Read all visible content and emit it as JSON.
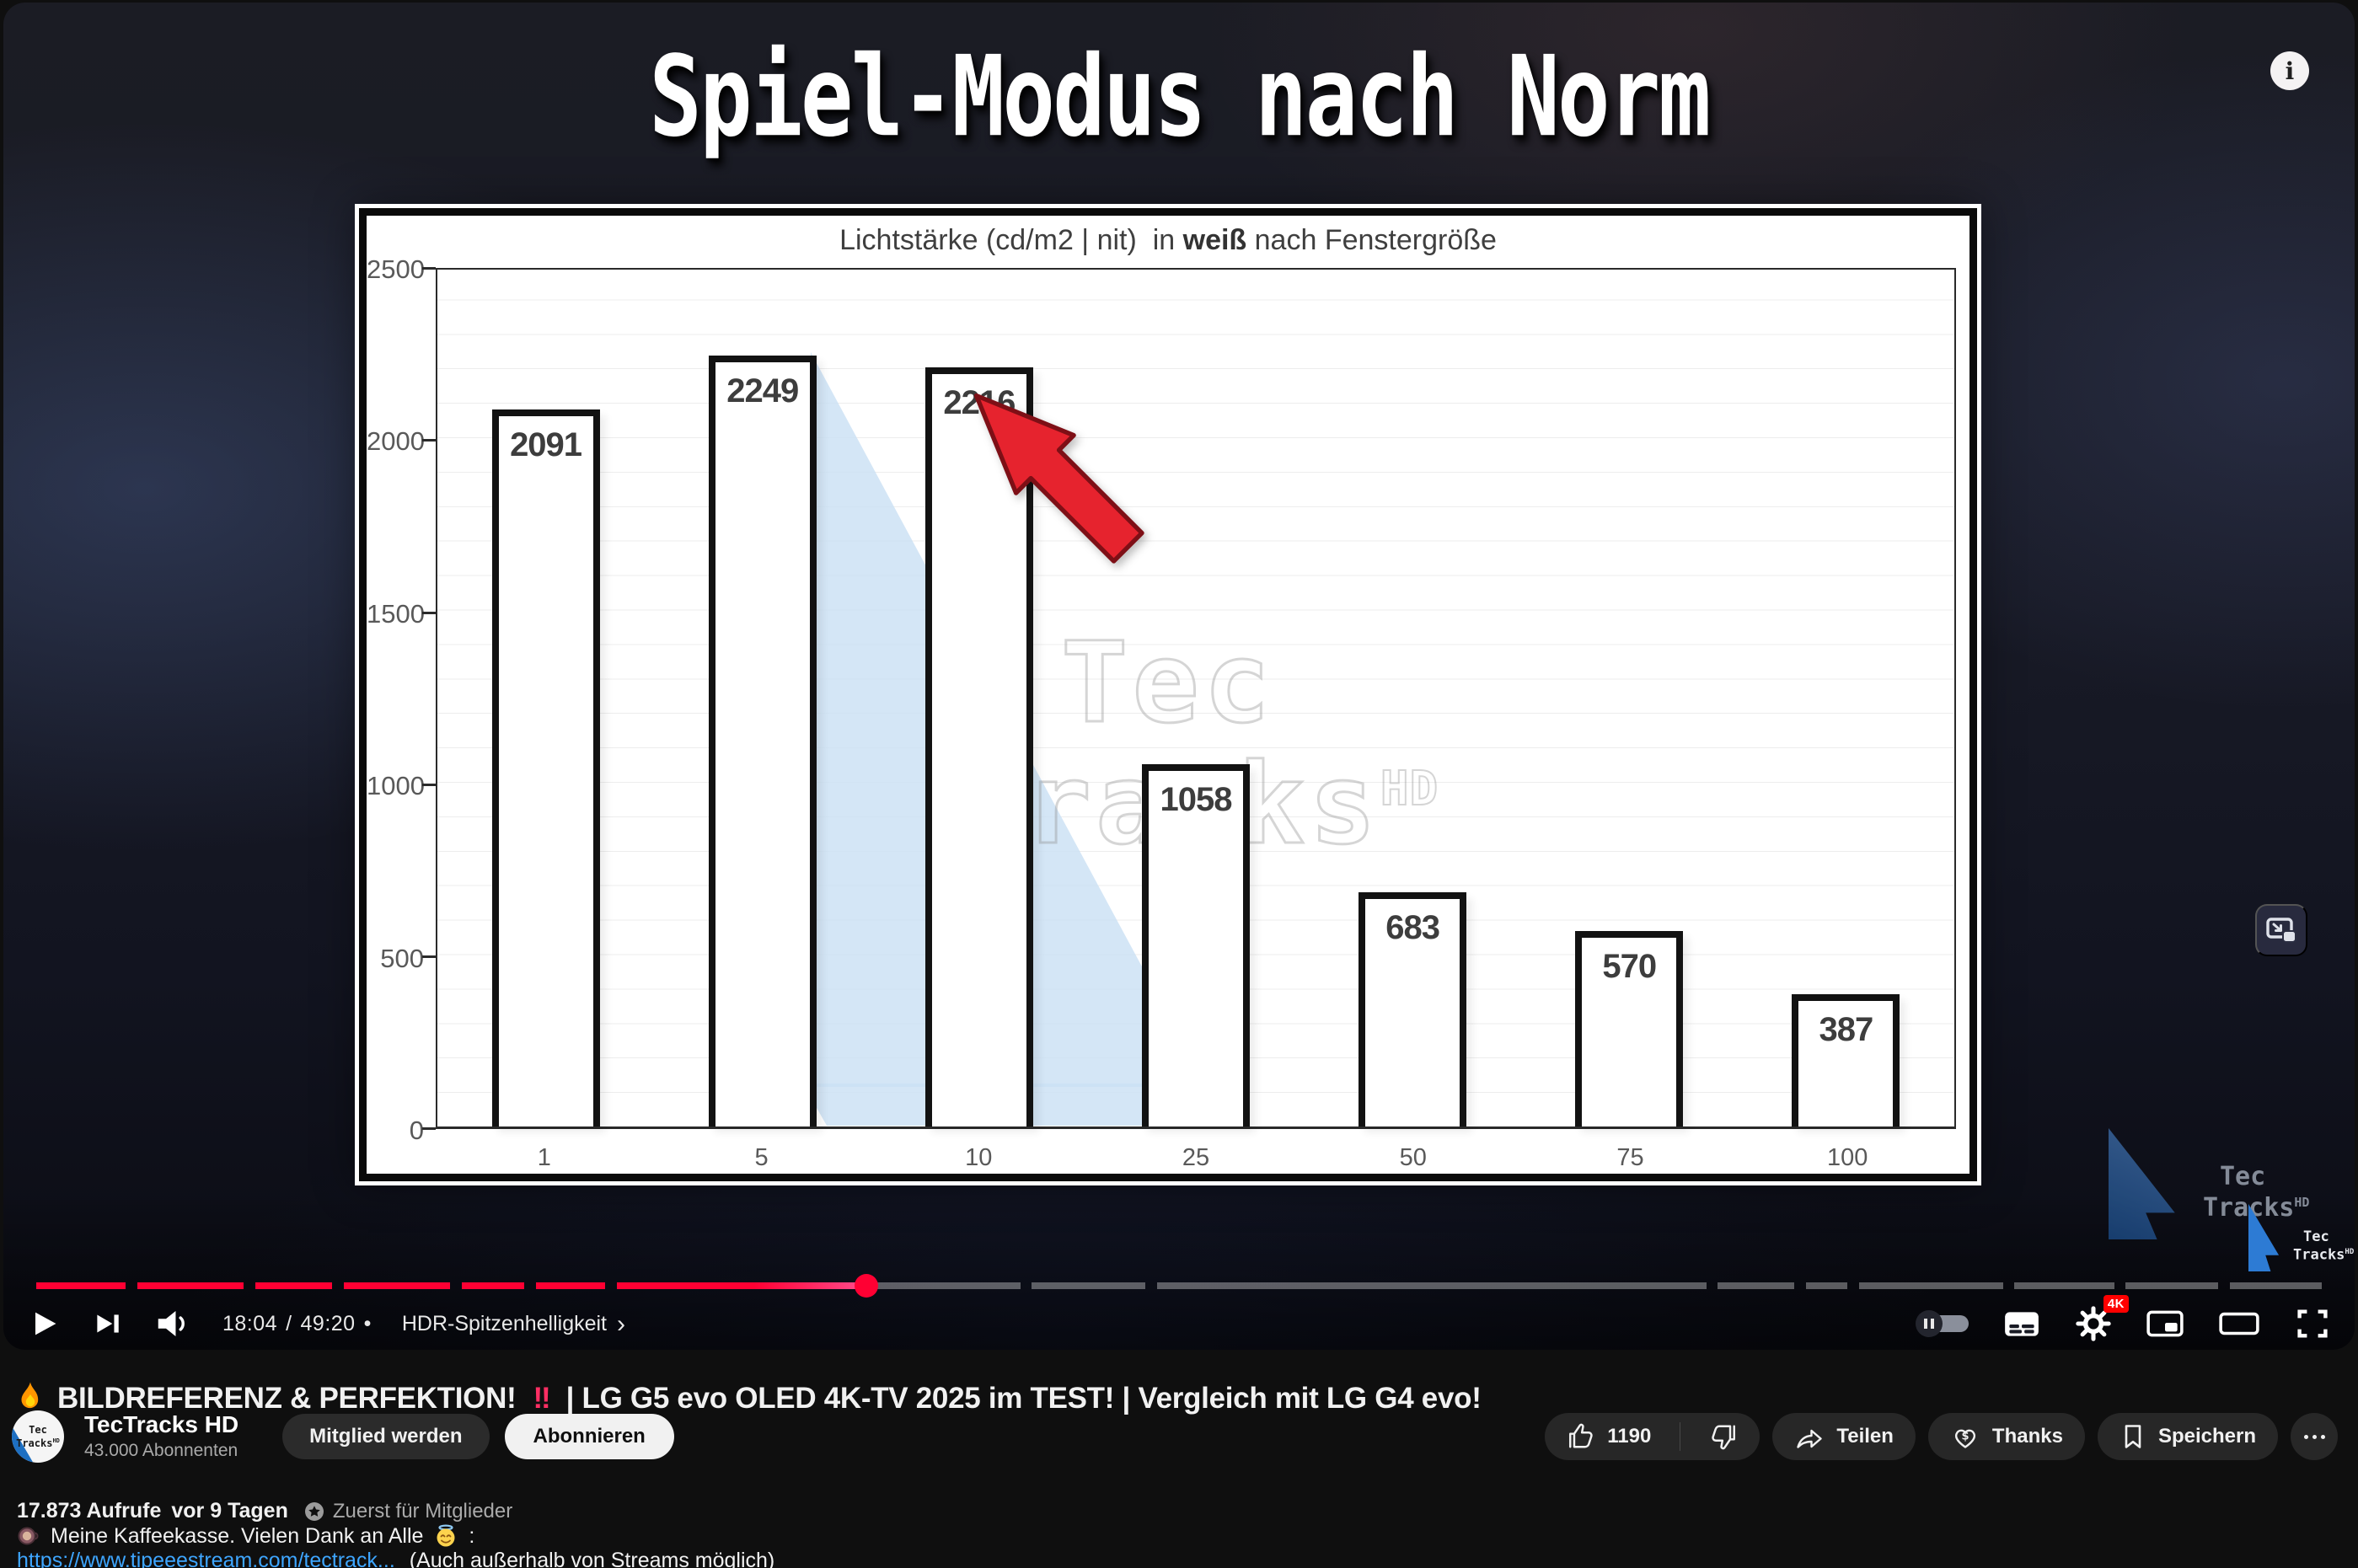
{
  "colors": {
    "accent_red": "#ff0033",
    "link_blue": "#3ea6ff",
    "bang_pink": "#ff2e63",
    "arrow_red": "#e6232e",
    "logo_blue": "#2d7bd4",
    "sail_blue": "#cfe0f4",
    "settings_badge_red": "#ff0000",
    "page_bg": "#0f0f0f"
  },
  "overlay": {
    "headline": "Spiel-Modus nach Norm",
    "info_label": "i"
  },
  "chart_data": {
    "type": "bar",
    "title_prefix": "Lichtstärke (cd/m2 | nit)  in ",
    "title_bold": "weiß",
    "title_suffix": " nach Fenstergröße",
    "categories": [
      "1",
      "5",
      "10",
      "25",
      "50",
      "75",
      "100"
    ],
    "values": [
      2091,
      2249,
      2216,
      1058,
      683,
      570,
      387
    ],
    "ylim": [
      0,
      2500
    ],
    "yticks": [
      "2500",
      "2000",
      "1500",
      "1000",
      "500",
      "0"
    ],
    "grid": true,
    "legend": false,
    "annotation": "red arrow pointing at the 2216 bar (10% window)",
    "watermark": {
      "line1": "Tec",
      "line2": "Tracks",
      "sup": "HD"
    }
  },
  "player": {
    "time_current": "18:04",
    "time_separator": "/",
    "time_duration": "49:20",
    "bullet": "•",
    "chapter_title": "HDR-Spitzenhelligkeit",
    "chapter_chevron": "›",
    "settings_badge": "4K",
    "progress": {
      "played_percent": 36.5,
      "segments": [
        [
          0.7,
          4.55
        ],
        [
          5.05,
          9.65
        ],
        [
          10.15,
          13.45
        ],
        [
          13.95,
          18.55
        ],
        [
          19.05,
          21.75
        ],
        [
          22.25,
          25.25
        ],
        [
          25.75,
          36.5
        ],
        [
          36.5,
          43.15
        ],
        [
          43.65,
          48.55
        ],
        [
          49.05,
          72.75
        ],
        [
          73.25,
          76.55
        ],
        [
          77.05,
          78.85
        ],
        [
          79.35,
          85.55
        ],
        [
          86.05,
          90.35
        ],
        [
          90.85,
          94.85
        ],
        [
          95.35,
          99.3
        ]
      ]
    }
  },
  "logos": {
    "watermark_large": {
      "l1": "Tec",
      "l2": "Tracks",
      "sup": "HD"
    },
    "watermark_small": {
      "l1": "Tec",
      "l2": "Tracks",
      "sup": "HD"
    }
  },
  "below": {
    "title": {
      "part1": "BILDREFERENZ & PERFEKTION!",
      "bang": "‼",
      "part2": "| LG G5 evo OLED 4K-TV 2025 im TEST! | Vergleich mit LG G4 evo!"
    },
    "channel": {
      "name": "TecTracks HD",
      "subscribers": "43.000 Abonnenten",
      "join_label": "Mitglied werden",
      "subscribe_label": "Abonnieren",
      "avatar": {
        "l1": "Tec",
        "l2": "Tracks",
        "sup": "HD"
      }
    },
    "actions": {
      "like_count": "1190",
      "share_label": "Teilen",
      "thanks_label": "Thanks",
      "save_label": "Speichern"
    },
    "meta": {
      "views": "17.873 Aufrufe",
      "date": "vor 9 Tagen",
      "members_first": "Zuerst für Mitglieder"
    },
    "description": {
      "line1": "Meine Kaffeekasse. Vielen Dank an Alle",
      "line1_colon": ":",
      "link": "https://www.tipeeestream.com/tectrack...",
      "link_suffix": "(Auch außerhalb von Streams möglich)"
    }
  }
}
